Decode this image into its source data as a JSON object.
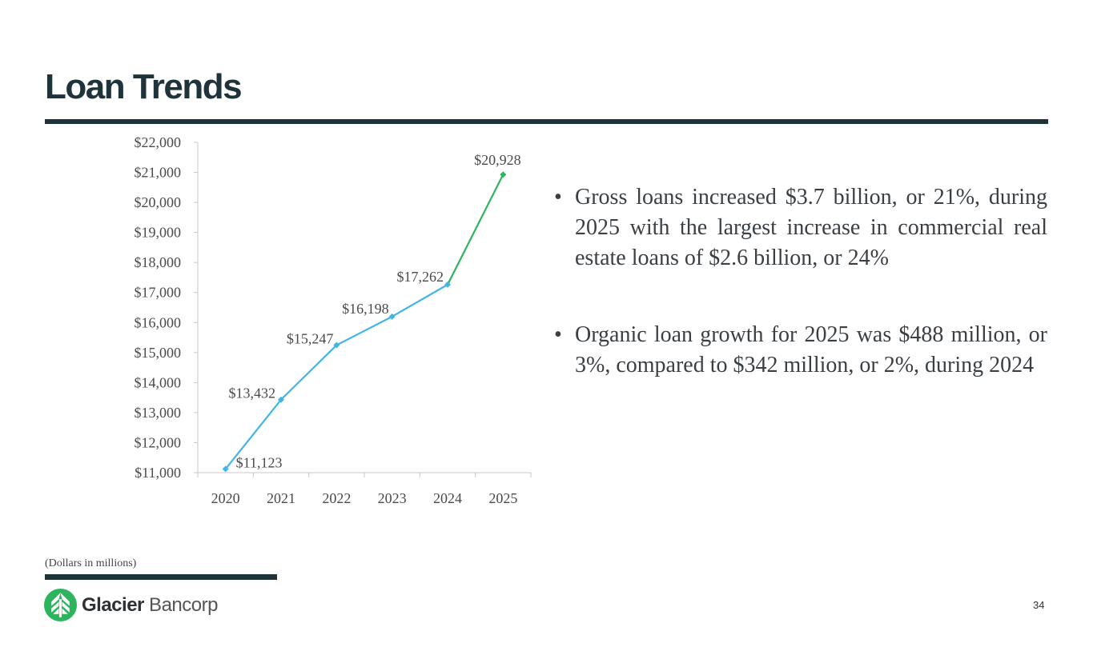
{
  "slide": {
    "title": "Loan Trends",
    "bullets": [
      "Gross loans increased $3.7 billion, or 21%, during 2025 with the largest increase in commercial real estate loans of $2.6 billion, or 24%",
      "Organic loan growth for 2025 was $488 million, or 3%, compared to $342 million, or 2%, during 2024"
    ],
    "bullet_glyph": "•",
    "note": "(Dollars in millions)",
    "logo": {
      "bold": "Glacier",
      "light": " Bancorp",
      "icon": "glacier-tree-logo-icon",
      "color": "#2db55d"
    },
    "page_number": "34",
    "colors": {
      "primary": "#1f333b",
      "series_blue": "#41b6e6",
      "series_green": "#2db55d"
    }
  },
  "chart_data": {
    "type": "line",
    "title": "",
    "xlabel": "",
    "ylabel": "",
    "categories": [
      "2020",
      "2021",
      "2022",
      "2023",
      "2024",
      "2025"
    ],
    "series": [
      {
        "name": "Gross loans",
        "values": [
          11123,
          13432,
          15247,
          16198,
          17262,
          20928
        ]
      }
    ],
    "data_labels": [
      "$11,123",
      "$13,432",
      "$15,247",
      "$16,198",
      "$17,262",
      "$20,928"
    ],
    "segment_colors": [
      "#41b6e6",
      "#41b6e6",
      "#41b6e6",
      "#41b6e6",
      "#2db55d"
    ],
    "point_colors": [
      "#41b6e6",
      "#41b6e6",
      "#41b6e6",
      "#41b6e6",
      "#41b6e6",
      "#2db55d"
    ],
    "ylim": [
      11000,
      22000
    ],
    "yticks": [
      11000,
      12000,
      13000,
      14000,
      15000,
      16000,
      17000,
      18000,
      19000,
      20000,
      21000,
      22000
    ],
    "ytick_labels": [
      "$11,000",
      "$12,000",
      "$13,000",
      "$14,000",
      "$15,000",
      "$16,000",
      "$17,000",
      "$18,000",
      "$19,000",
      "$20,000",
      "$21,000",
      "$22,000"
    ],
    "grid": false,
    "legend": "none"
  }
}
